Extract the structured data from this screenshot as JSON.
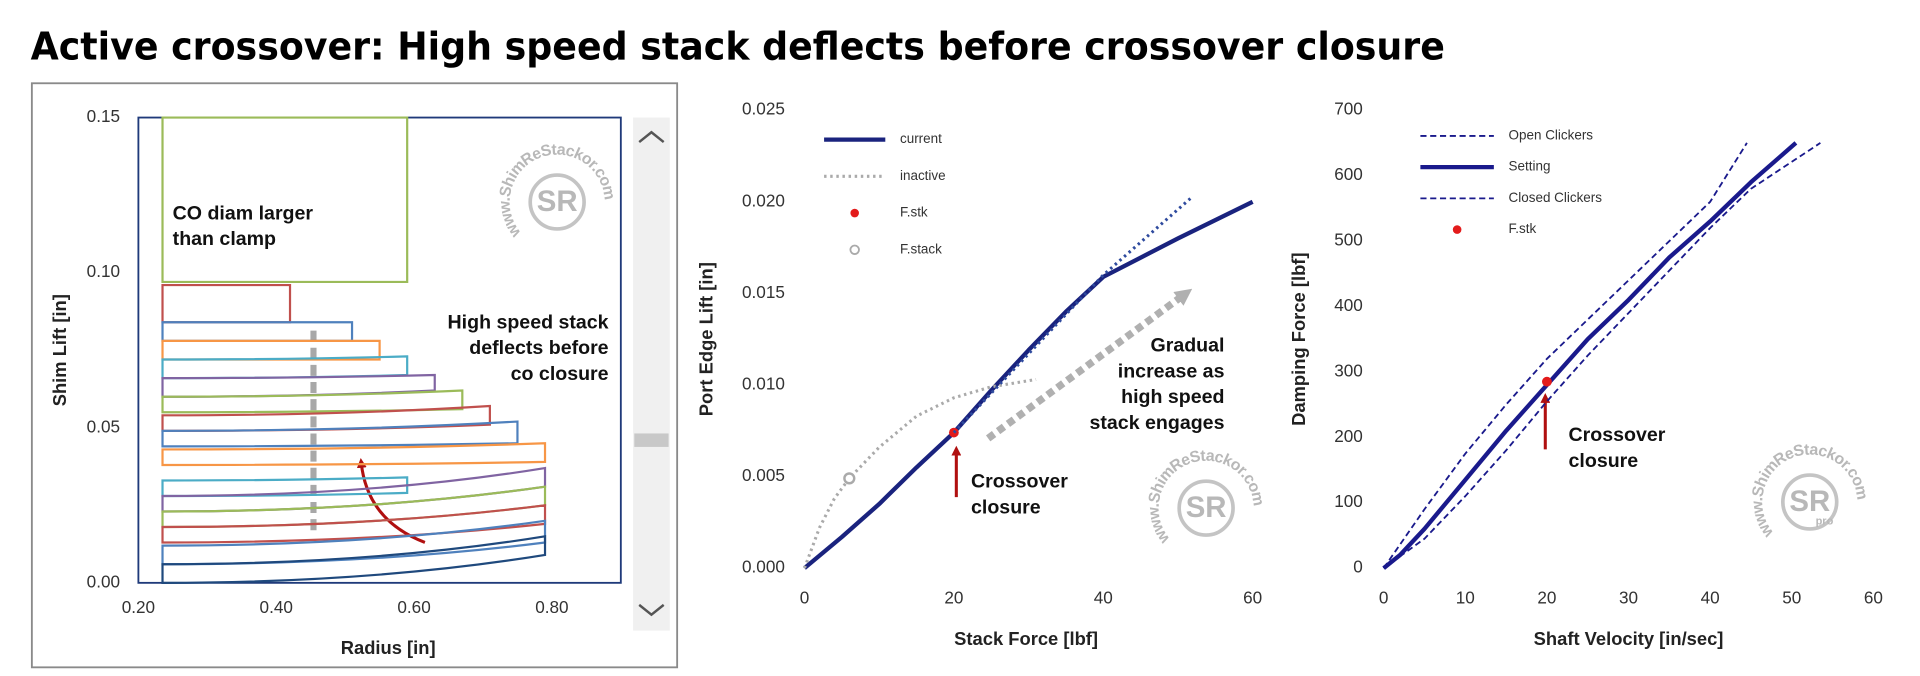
{
  "title": "Active crossover: High speed stack deflects before crossover closure",
  "chart_data": [
    {
      "type": "shims",
      "xlabel": "Radius [in]",
      "ylabel": "Shim Lift [in]",
      "xlim": [
        0.2,
        0.9
      ],
      "ylim": [
        0,
        0.15
      ],
      "xticks": [
        {
          "value": 0.2,
          "label": "0.20"
        },
        {
          "value": 0.4,
          "label": "0.40"
        },
        {
          "value": 0.6,
          "label": "0.60"
        },
        {
          "value": 0.8,
          "label": "0.80"
        }
      ],
      "yticks": [
        {
          "value": 0,
          "label": "0.00"
        },
        0.05,
        {
          "value": 0.1,
          "label": "0.10"
        },
        0.15
      ],
      "series": [
        {
          "color": "#9bbb59",
          "x": [
            0.235,
            0.59
          ],
          "values": [
            0.097,
            0.097
          ],
          "top": [
            0.15,
            0.15
          ]
        },
        {
          "color": "#c0504d",
          "x": [
            0.235,
            0.42
          ],
          "values": [
            0.084,
            0.084
          ],
          "top": [
            0.096,
            0.096
          ]
        },
        {
          "color": "#4f81bd",
          "x": [
            0.235,
            0.51
          ],
          "values": [
            0.078,
            0.078
          ],
          "top": [
            0.084,
            0.084
          ]
        },
        {
          "color": "#f79646",
          "x": [
            0.235,
            0.55
          ],
          "values": [
            0.072,
            0.072
          ],
          "top": [
            0.078,
            0.078
          ]
        },
        {
          "color": "#4bacc6",
          "x": [
            0.235,
            0.59
          ],
          "values": [
            0.066,
            0.067
          ],
          "top": [
            0.072,
            0.073
          ]
        },
        {
          "color": "#8064a2",
          "x": [
            0.235,
            0.63
          ],
          "values": [
            0.06,
            0.062
          ],
          "top": [
            0.066,
            0.067
          ]
        },
        {
          "color": "#9bbb59",
          "x": [
            0.235,
            0.67
          ],
          "values": [
            0.055,
            0.056
          ],
          "top": [
            0.06,
            0.062
          ]
        },
        {
          "color": "#c0504d",
          "x": [
            0.235,
            0.71
          ],
          "values": [
            0.049,
            0.051
          ],
          "top": [
            0.054,
            0.057
          ]
        },
        {
          "color": "#4f81bd",
          "x": [
            0.235,
            0.75
          ],
          "values": [
            0.044,
            0.045
          ],
          "top": [
            0.049,
            0.052
          ]
        },
        {
          "color": "#f79646",
          "x": [
            0.235,
            0.79
          ],
          "values": [
            0.038,
            0.039
          ],
          "top": [
            0.043,
            0.045
          ]
        },
        {
          "color": "#4bacc6",
          "x": [
            0.235,
            0.59
          ],
          "values": [
            0.028,
            0.029
          ],
          "top": [
            0.033,
            0.034
          ]
        },
        {
          "color": "#8064a2",
          "x": [
            0.235,
            0.79
          ],
          "values": [
            0.023,
            0.031
          ],
          "top": [
            0.028,
            0.037
          ]
        },
        {
          "color": "#9bbb59",
          "x": [
            0.235,
            0.79
          ],
          "values": [
            0.018,
            0.025
          ],
          "top": [
            0.023,
            0.031
          ]
        },
        {
          "color": "#c0504d",
          "x": [
            0.235,
            0.79
          ],
          "values": [
            0.013,
            0.019
          ],
          "top": [
            0.018,
            0.025
          ]
        },
        {
          "color": "#4f81bd",
          "x": [
            0.235,
            0.79
          ],
          "values": [
            0.006,
            0.013
          ],
          "top": [
            0.012,
            0.02
          ]
        },
        {
          "color": "#1f497d",
          "x": [
            0.235,
            0.79
          ],
          "values": [
            0,
            0.009
          ],
          "top": [
            0.006,
            0.015
          ]
        }
      ],
      "annotations": [
        {
          "lines": [
            "CO diam larger",
            "than clamp"
          ]
        },
        {
          "lines": [
            "High speed stack",
            "deflects before",
            "co closure"
          ]
        }
      ],
      "watermark": {
        "text": "www.ShimReStackor.com",
        "logo": "SR"
      }
    },
    {
      "type": "line",
      "xlabel": "Stack Force [lbf]",
      "ylabel": "Port Edge Lift [in]",
      "xlim": [
        0,
        60
      ],
      "ylim": [
        0,
        0.025
      ],
      "xticks": [
        0,
        20,
        40,
        60
      ],
      "yticks": [
        {
          "value": 0,
          "label": "0.000"
        },
        0.005,
        {
          "value": 0.01,
          "label": "0.010"
        },
        0.015,
        {
          "value": 0.02,
          "label": "0.020"
        },
        0.025
      ],
      "series": [
        {
          "name": "current",
          "color": "#1a237e",
          "style": "thick",
          "x": [
            0,
            5,
            10,
            15,
            20,
            25,
            30,
            35,
            40,
            50,
            60
          ],
          "values": [
            0,
            0.0017,
            0.0035,
            0.0055,
            0.0074,
            0.0097,
            0.0119,
            0.014,
            0.0159,
            0.018,
            0.02
          ]
        },
        {
          "name": "inactive",
          "color": "#aaaaaa",
          "style": "dotted",
          "x": [
            0,
            2,
            4,
            6,
            10,
            15,
            20,
            25,
            31
          ],
          "values": [
            0,
            0.0022,
            0.0038,
            0.0049,
            0.0066,
            0.0083,
            0.0093,
            0.0099,
            0.0103
          ]
        },
        {
          "name": "F.stk",
          "color": "#e31b1b",
          "style": "dot",
          "x": [
            20
          ],
          "values": [
            0.0074
          ]
        },
        {
          "name": "F.stack",
          "color": "#aaaaaa",
          "style": "ring",
          "x": [
            6
          ],
          "values": [
            0.0049
          ]
        },
        {
          "color": "#2e4a9e",
          "style": "dotted",
          "x": [
            20,
            30,
            40,
            52
          ],
          "values": [
            0.0074,
            0.0117,
            0.016,
            0.0203
          ]
        }
      ],
      "annotations": [
        {
          "lines": [
            "Crossover",
            "closure"
          ]
        },
        {
          "lines": [
            "Gradual",
            "increase as",
            "high speed",
            "stack engages"
          ]
        }
      ],
      "watermark": {
        "text": "www.ShimReStackor.com",
        "logo": "SR"
      }
    },
    {
      "type": "line",
      "xlabel": "Shaft Velocity [in/sec]",
      "ylabel": "Damping Force [lbf]",
      "xlim": [
        0,
        60
      ],
      "ylim": [
        0,
        700
      ],
      "xticks": [
        0,
        10,
        20,
        30,
        40,
        50,
        60
      ],
      "yticks": [
        0,
        100,
        200,
        300,
        400,
        500,
        600,
        700
      ],
      "series": [
        {
          "name": "Open Clickers",
          "color": "#1a1a8c",
          "style": "dashed",
          "x": [
            0,
            5,
            10,
            15,
            20,
            25,
            30,
            35,
            40,
            44.5
          ],
          "values": [
            0,
            90,
            175,
            250,
            320,
            380,
            440,
            500,
            560,
            650
          ]
        },
        {
          "name": "Setting",
          "color": "#1a1a8c",
          "style": "thick",
          "x": [
            0,
            2,
            5,
            10,
            15,
            20,
            25,
            30,
            35,
            40,
            45,
            50.5
          ],
          "values": [
            0,
            20,
            60,
            135,
            210,
            280,
            350,
            410,
            475,
            530,
            590,
            650
          ]
        },
        {
          "name": "Closed Clickers",
          "color": "#1a1a8c",
          "style": "dashed",
          "x": [
            0,
            5,
            10,
            15,
            20,
            25,
            30,
            35,
            40,
            45,
            53.5
          ],
          "values": [
            0,
            45,
            110,
            180,
            255,
            325,
            390,
            455,
            520,
            580,
            650
          ]
        },
        {
          "name": "F.stk",
          "color": "#e31b1b",
          "style": "dot",
          "x": [
            20
          ],
          "values": [
            285
          ]
        }
      ],
      "annotations": [
        {
          "lines": [
            "Crossover",
            "closure"
          ]
        }
      ],
      "watermark": {
        "text": "www.ShimReStackor.com",
        "logo": "SR",
        "badge": "pro"
      }
    }
  ]
}
